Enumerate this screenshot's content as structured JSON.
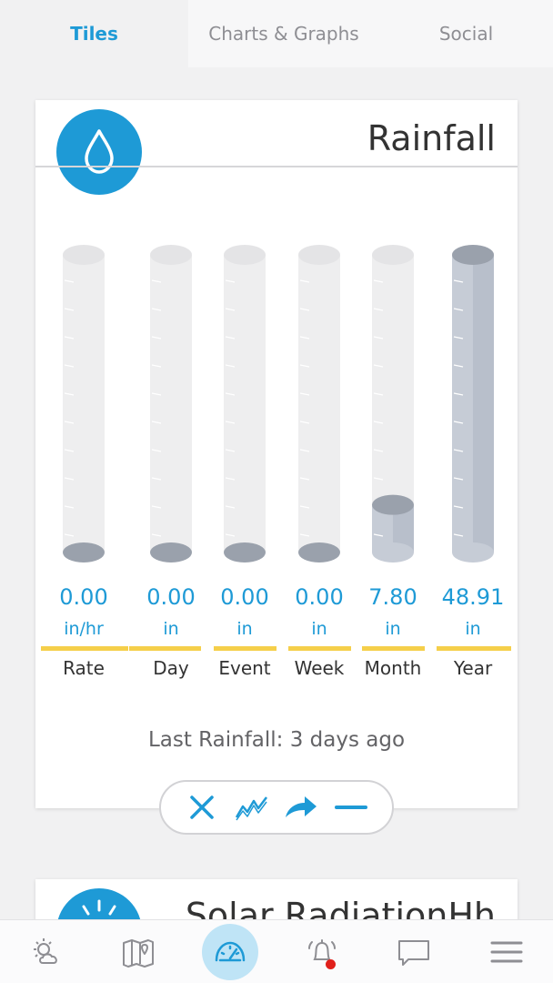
{
  "tabs": [
    {
      "label": "Tiles",
      "active": true
    },
    {
      "label": "Charts & Graphs",
      "active": false
    },
    {
      "label": "Social",
      "active": false
    }
  ],
  "rain_card": {
    "title": "Rainfall",
    "icon": "water-drop-icon",
    "gauges": [
      {
        "value": "0.00",
        "unit": "in/hr",
        "label": "Rate",
        "fill": 0.0
      },
      {
        "value": "0.00",
        "unit": "in",
        "label": "Day",
        "fill": 0.0
      },
      {
        "value": "0.00",
        "unit": "in",
        "label": "Event",
        "fill": 0.0
      },
      {
        "value": "0.00",
        "unit": "in",
        "label": "Week",
        "fill": 0.0
      },
      {
        "value": "7.80",
        "unit": "in",
        "label": "Month",
        "fill": 0.16
      },
      {
        "value": "48.91",
        "unit": "in",
        "label": "Year",
        "fill": 1.0
      }
    ],
    "last_rainfall": "Last Rainfall: 3 days ago",
    "toolbar": [
      "close-icon",
      "line-chart-icon",
      "share-arrow-icon",
      "minimize-icon"
    ]
  },
  "solar_card": {
    "title": "Solar RadiationHh",
    "icon": "sun-icon"
  },
  "bottom_nav": [
    {
      "icon": "weather-sun-cloud-icon",
      "active": false
    },
    {
      "icon": "map-pin-icon",
      "active": false
    },
    {
      "icon": "dashboard-gauge-icon",
      "active": true
    },
    {
      "icon": "alert-bell-icon",
      "active": false,
      "badge": true
    },
    {
      "icon": "chat-bubble-icon",
      "active": false
    },
    {
      "icon": "menu-icon",
      "active": false
    }
  ],
  "colors": {
    "accent": "#1e9ad6",
    "underline": "#f5cf4a",
    "alert": "#e0201b"
  }
}
